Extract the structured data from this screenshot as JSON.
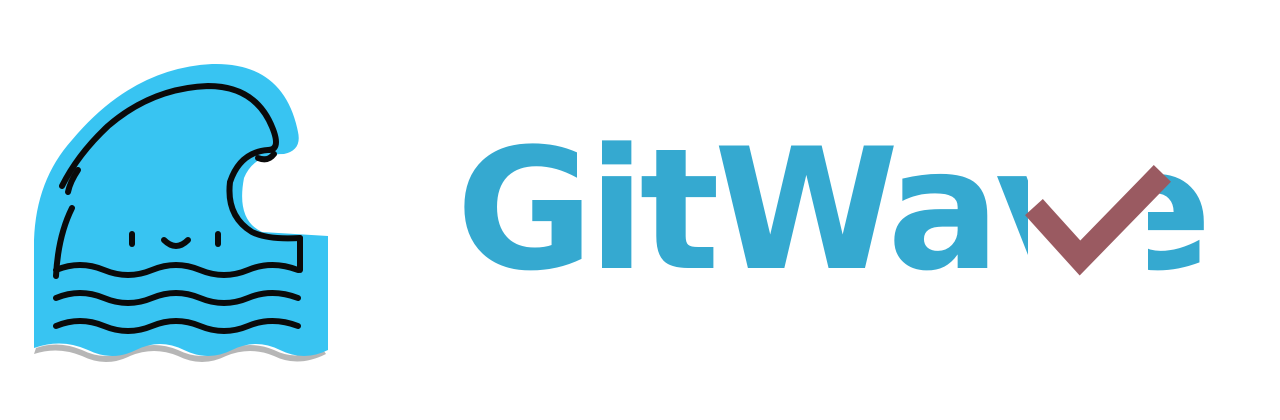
{
  "logo": {
    "mark_icon": "wave-mascot-icon",
    "checkmark_icon": "checkmark-icon",
    "wordmark_text": "GitWave",
    "colors": {
      "wave_fill": "#38c4f2",
      "outline": "#0a0a0a",
      "wordmark": "#35a9d0",
      "checkmark": "#9a5a61",
      "shadow": "#7a7a7a"
    }
  }
}
